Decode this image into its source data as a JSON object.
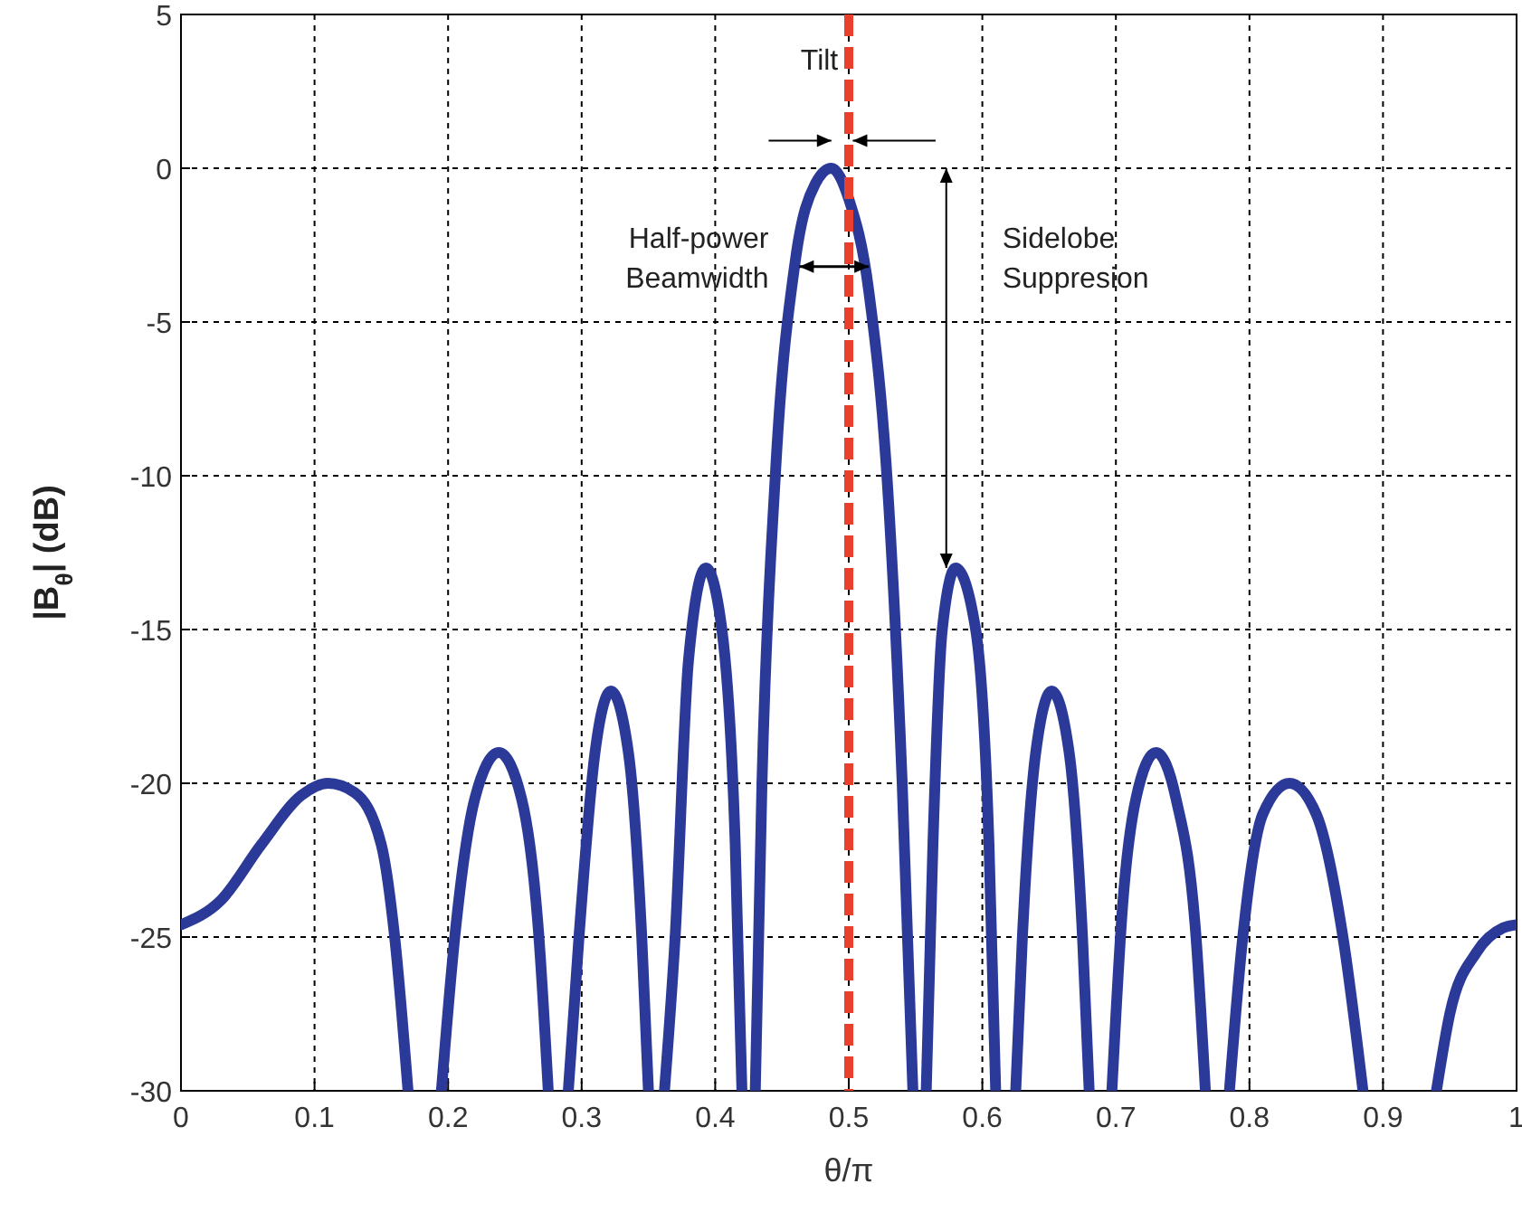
{
  "chart_data": {
    "type": "line",
    "xlabel": "θ/π",
    "ylabel": "|B$_{θ}$| (dB)",
    "series": [
      {
        "color": "#2b3a99",
        "x": [
          0,
          0.03,
          0.06,
          0.09,
          0.11,
          0.13,
          0.15,
          0.16,
          0.17
        ],
        "values": [
          -24.6,
          -23.8,
          -22,
          -20.4,
          -20,
          -20.3,
          -22,
          -25,
          -30
        ]
      },
      {
        "color": "#2b3a99",
        "x": [
          0.195,
          0.205,
          0.22,
          0.238,
          0.255,
          0.268,
          0.275
        ],
        "values": [
          -30,
          -25,
          -20.5,
          -19,
          -20.5,
          -25,
          -30
        ]
      },
      {
        "color": "#2b3a99",
        "x": [
          0.29,
          0.298,
          0.31,
          0.322,
          0.335,
          0.345,
          0.35
        ],
        "values": [
          -30,
          -25,
          -19,
          -17,
          -19,
          -25,
          -30
        ]
      },
      {
        "color": "#2b3a99",
        "x": [
          0.362,
          0.37,
          0.38,
          0.393,
          0.405,
          0.415,
          0.42
        ],
        "values": [
          -30,
          -25,
          -16,
          -13,
          -15,
          -22,
          -30
        ]
      },
      {
        "color": "#2b3a99",
        "x": [
          0.43,
          0.435,
          0.445,
          0.46,
          0.475,
          0.487,
          0.5,
          0.515,
          0.53,
          0.54,
          0.548
        ],
        "values": [
          -30,
          -20,
          -10,
          -3,
          -0.5,
          0,
          -1,
          -4,
          -11,
          -20,
          -30
        ]
      },
      {
        "color": "#2b3a99",
        "x": [
          0.558,
          0.563,
          0.57,
          0.58,
          0.595,
          0.605,
          0.61
        ],
        "values": [
          -30,
          -22,
          -15,
          -13,
          -15,
          -22,
          -30
        ]
      },
      {
        "color": "#2b3a99",
        "x": [
          0.625,
          0.63,
          0.64,
          0.652,
          0.665,
          0.675,
          0.68
        ],
        "values": [
          -30,
          -25,
          -19,
          -17,
          -19,
          -25,
          -30
        ]
      },
      {
        "color": "#2b3a99",
        "x": [
          0.697,
          0.705,
          0.715,
          0.73,
          0.745,
          0.76,
          0.767
        ],
        "values": [
          -30,
          -24,
          -20.5,
          -19,
          -20.5,
          -25,
          -30
        ]
      },
      {
        "color": "#2b3a99",
        "x": [
          0.785,
          0.795,
          0.81,
          0.83,
          0.85,
          0.87,
          0.885
        ],
        "values": [
          -30,
          -25,
          -21,
          -20,
          -21,
          -25,
          -30
        ]
      },
      {
        "color": "#2b3a99",
        "x": [
          0.94,
          0.95,
          0.97,
          0.99,
          1
        ],
        "values": [
          -30,
          -27.5,
          -25.5,
          -24.7,
          -24.6
        ]
      }
    ],
    "xlim": [
      0,
      1
    ],
    "xticks": [
      0,
      0.1,
      0.2,
      0.3,
      0.4,
      0.5,
      0.6,
      0.7,
      0.8,
      0.9,
      1
    ],
    "ylim": [
      -30,
      5
    ],
    "yticks": [
      -30,
      -25,
      -20,
      -15,
      -10,
      -5,
      0,
      5
    ],
    "grid": true,
    "line_style": "solid",
    "ref_lines": [
      {
        "axis": "x",
        "value": 0.5,
        "color": "#e8402c",
        "line_style": "dashed"
      }
    ],
    "annotations": [
      "Tilt",
      "Half-power\nBeamwidth",
      "Sidelobe\nSuppresion"
    ]
  }
}
